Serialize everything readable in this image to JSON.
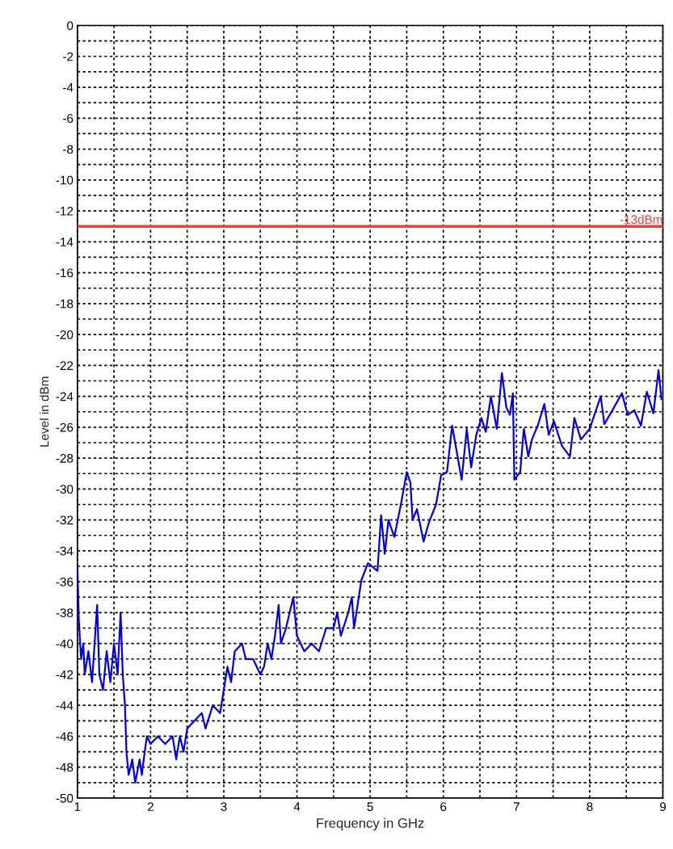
{
  "chart_data": {
    "type": "line",
    "xlabel": "Frequency in GHz",
    "ylabel": "Level in dBm",
    "xlim": [
      1,
      9
    ],
    "ylim": [
      -50,
      0
    ],
    "xticks": [
      1,
      {
        "value": 1.5,
        "label": null
      },
      2,
      {
        "value": 2.5,
        "label": null
      },
      3,
      {
        "value": 3.5,
        "label": null
      },
      4,
      {
        "value": 4.5,
        "label": null
      },
      5,
      {
        "value": 5.5,
        "label": null
      },
      6,
      {
        "value": 6.5,
        "label": null
      },
      7,
      {
        "value": 7.5,
        "label": null
      },
      8,
      {
        "value": 8.5,
        "label": null
      },
      9
    ],
    "yticks": [
      -50,
      {
        "value": -49,
        "label": null
      },
      -48,
      {
        "value": -47,
        "label": null
      },
      -46,
      {
        "value": -45,
        "label": null
      },
      -44,
      {
        "value": -43,
        "label": null
      },
      -42,
      {
        "value": -41,
        "label": null
      },
      -40,
      {
        "value": -39,
        "label": null
      },
      -38,
      {
        "value": -37,
        "label": null
      },
      -36,
      {
        "value": -35,
        "label": null
      },
      -34,
      {
        "value": -33,
        "label": null
      },
      -32,
      {
        "value": -31,
        "label": null
      },
      -30,
      {
        "value": -29,
        "label": null
      },
      -28,
      {
        "value": -27,
        "label": null
      },
      -26,
      {
        "value": -25,
        "label": null
      },
      -24,
      {
        "value": -23,
        "label": null
      },
      -22,
      {
        "value": -21,
        "label": null
      },
      -20,
      {
        "value": -19,
        "label": null
      },
      -18,
      {
        "value": -17,
        "label": null
      },
      -16,
      {
        "value": -15,
        "label": null
      },
      -14,
      {
        "value": -13,
        "label": null
      },
      -12,
      {
        "value": -11,
        "label": null
      },
      -10,
      {
        "value": -9,
        "label": null
      },
      -8,
      {
        "value": -7,
        "label": null
      },
      -6,
      {
        "value": -5,
        "label": null
      },
      -4,
      {
        "value": -3,
        "label": null
      },
      -2,
      {
        "value": -1,
        "label": null
      },
      0
    ],
    "grid": true,
    "line_style": "solid",
    "marker": "none",
    "ref_lines": [
      {
        "axis": "y",
        "value": -13,
        "label": "-13dBm",
        "color": "#f04040",
        "line_style": "solid"
      }
    ],
    "series": [
      {
        "color": "#0000e6",
        "x": [
          1.0,
          1.02,
          1.05,
          1.08,
          1.1,
          1.15,
          1.2,
          1.27,
          1.3,
          1.35,
          1.4,
          1.45,
          1.5,
          1.55,
          1.59,
          1.62,
          1.65,
          1.67,
          1.7,
          1.75,
          1.79,
          1.85,
          1.88,
          1.92,
          1.95,
          2.0,
          2.1,
          2.2,
          2.3,
          2.35,
          2.4,
          2.45,
          2.5,
          2.6,
          2.7,
          2.75,
          2.85,
          2.95,
          3.0,
          3.05,
          3.1,
          3.15,
          3.25,
          3.3,
          3.4,
          3.5,
          3.55,
          3.6,
          3.65,
          3.7,
          3.75,
          3.78,
          3.85,
          3.9,
          3.95,
          4.0,
          4.1,
          4.2,
          4.3,
          4.4,
          4.5,
          4.55,
          4.6,
          4.7,
          4.75,
          4.78,
          4.88,
          4.97,
          5.1,
          5.15,
          5.2,
          5.25,
          5.33,
          5.42,
          5.5,
          5.55,
          5.58,
          5.64,
          5.73,
          5.8,
          5.9,
          5.97,
          6.05,
          6.12,
          6.18,
          6.25,
          6.32,
          6.38,
          6.45,
          6.52,
          6.58,
          6.65,
          6.73,
          6.8,
          6.86,
          6.91,
          6.95,
          6.97,
          7.05,
          7.1,
          7.16,
          7.21,
          7.29,
          7.38,
          7.44,
          7.51,
          7.62,
          7.73,
          7.79,
          7.88,
          8.0,
          8.15,
          8.2,
          8.31,
          8.44,
          8.52,
          8.61,
          8.7,
          8.78,
          8.87,
          8.94,
          8.98
        ],
        "values": [
          -35,
          -38.5,
          -41,
          -40,
          -42,
          -40.5,
          -42.5,
          -37.5,
          -42,
          -43,
          -40.5,
          -42.5,
          -40,
          -42,
          -38,
          -42,
          -44,
          -47,
          -48.5,
          -47.5,
          -49,
          -47.5,
          -48.5,
          -47,
          -46,
          -46.5,
          -46,
          -46.5,
          -46,
          -47.5,
          -46,
          -47,
          -45.5,
          -45,
          -44.5,
          -45.5,
          -44,
          -44.5,
          -43,
          -41.5,
          -42.5,
          -40.5,
          -40,
          -41,
          -41,
          -42,
          -41.5,
          -40,
          -41,
          -39.5,
          -37.5,
          -40,
          -39,
          -38,
          -37,
          -39.5,
          -40.5,
          -40,
          -40.5,
          -39,
          -39,
          -38,
          -39.5,
          -38,
          -37,
          -39,
          -35.9,
          -34.8,
          -35.3,
          -31.7,
          -34.2,
          -32,
          -33.1,
          -31,
          -28.9,
          -29.6,
          -32,
          -31.3,
          -33.4,
          -32.2,
          -31,
          -29.1,
          -28.9,
          -25.9,
          -27.5,
          -29.4,
          -26.1,
          -28.6,
          -26.5,
          -25.4,
          -26.3,
          -24,
          -26.1,
          -22.5,
          -24.7,
          -25.2,
          -23.8,
          -29.4,
          -28.9,
          -26.1,
          -27.9,
          -26.8,
          -25.9,
          -24.5,
          -26.5,
          -25.6,
          -27.2,
          -27.9,
          -25.4,
          -26.8,
          -26.1,
          -24,
          -25.8,
          -24.9,
          -23.8,
          -25.2,
          -24.9,
          -25.9,
          -23.7,
          -25.1,
          -22.3,
          -24.2
        ]
      }
    ]
  }
}
